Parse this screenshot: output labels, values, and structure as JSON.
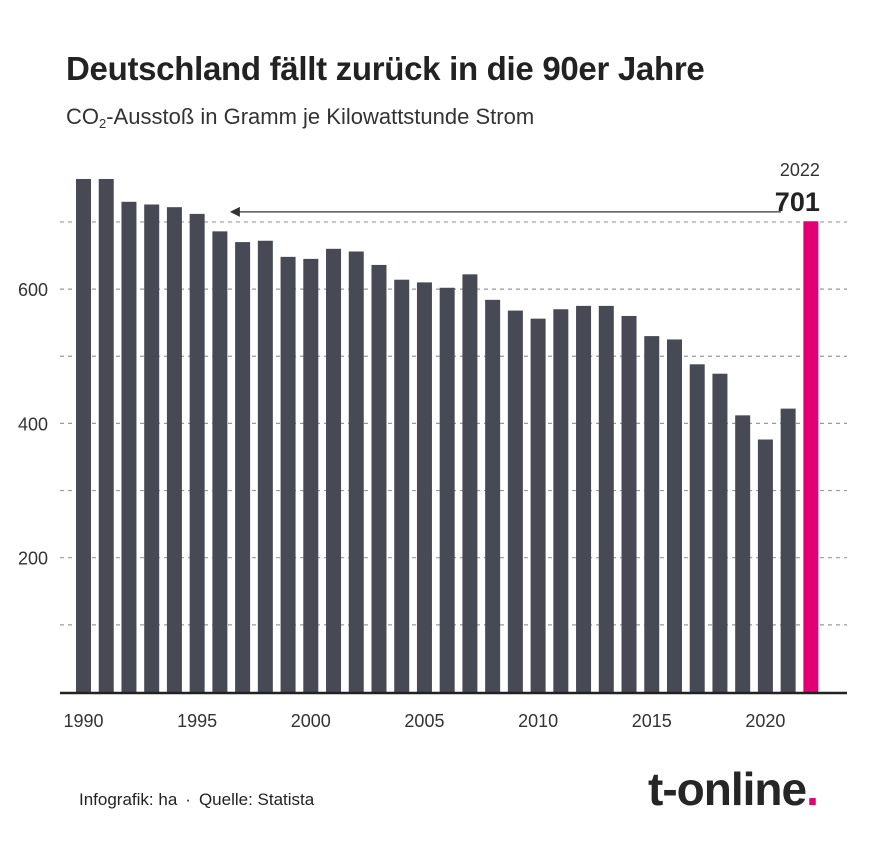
{
  "title": "Deutschland fällt zurück in die 90er Jahre",
  "subtitle": {
    "prefix": "CO",
    "subscript": "2",
    "suffix": "-Ausstoß in Gramm je Kilowattstunde Strom"
  },
  "footer": {
    "credit": "Infografik: ha",
    "separator": "·",
    "source": "Quelle: Statista"
  },
  "logo": {
    "text": "t-online",
    "dot": "."
  },
  "colors": {
    "bar": "#474a55",
    "highlight": "#e20074",
    "grid": "#9a9a9a",
    "axis": "#222222"
  },
  "chart_data": {
    "type": "bar",
    "x": [
      1990,
      1991,
      1992,
      1993,
      1994,
      1995,
      1996,
      1997,
      1998,
      1999,
      2000,
      2001,
      2002,
      2003,
      2004,
      2005,
      2006,
      2007,
      2008,
      2009,
      2010,
      2011,
      2012,
      2013,
      2014,
      2015,
      2016,
      2017,
      2018,
      2019,
      2020,
      2021,
      2022
    ],
    "values": [
      764,
      764,
      730,
      726,
      722,
      712,
      686,
      670,
      672,
      648,
      645,
      660,
      656,
      636,
      614,
      610,
      602,
      622,
      584,
      568,
      556,
      570,
      575,
      575,
      560,
      530,
      525,
      488,
      474,
      412,
      376,
      422,
      701
    ],
    "highlight": {
      "x": 2022,
      "value": 701,
      "year_label": "2022",
      "value_label": "701"
    },
    "y_ticks": [
      200,
      400,
      600
    ],
    "y_tick_labels": [
      "200",
      "400",
      "600"
    ],
    "y_gridlines": [
      100,
      200,
      300,
      400,
      500,
      600,
      700
    ],
    "x_ticks": [
      1990,
      1995,
      2000,
      2005,
      2010,
      2015,
      2020
    ],
    "x_tick_labels": [
      "1990",
      "1995",
      "2000",
      "2005",
      "2010",
      "2015",
      "2020"
    ],
    "ylim": [
      0,
      800
    ],
    "grid": "dashed horizontal",
    "annotation": {
      "type": "arrow",
      "from_x": 2022,
      "to_x": 1996,
      "at_value": 715
    }
  }
}
